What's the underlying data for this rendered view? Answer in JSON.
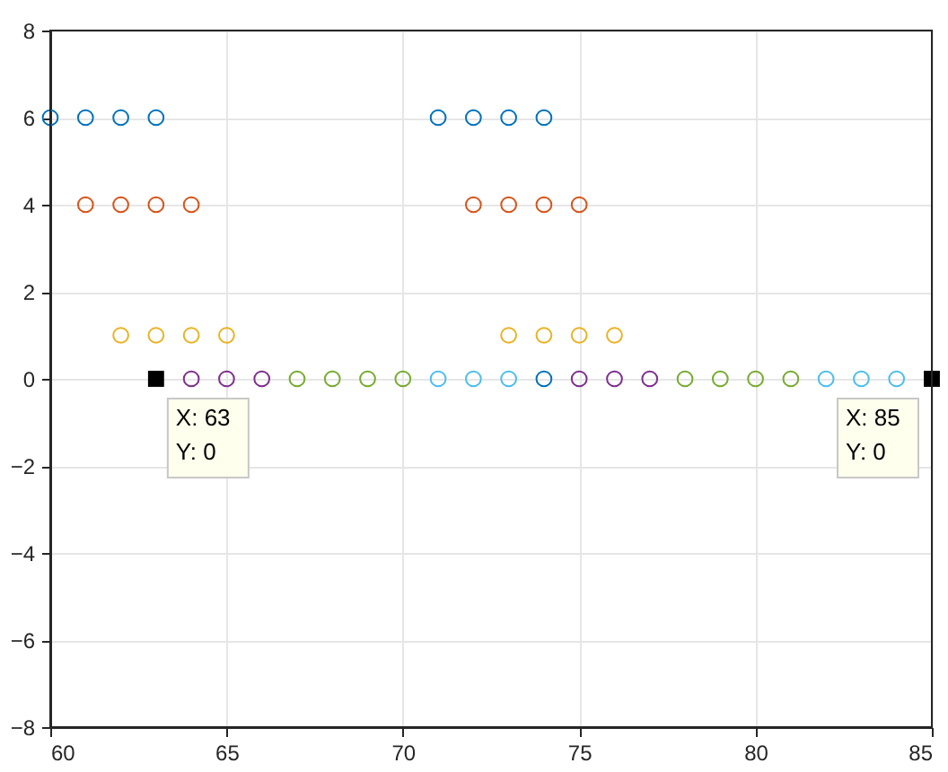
{
  "chart_data": {
    "type": "scatter",
    "marker": "circle",
    "grid": true,
    "xlim": [
      60,
      85
    ],
    "xticks": [
      60,
      65,
      70,
      75,
      80,
      85
    ],
    "ylim": [
      -8,
      8
    ],
    "yticks": [
      -8,
      -6,
      -4,
      -2,
      0,
      2,
      4,
      6,
      8
    ],
    "series": [
      {
        "color": "#0072bd",
        "x": [
          60,
          61,
          62,
          63,
          71,
          72,
          73,
          74,
          74
        ],
        "values": [
          6,
          6,
          6,
          6,
          6,
          6,
          6,
          6,
          0
        ]
      },
      {
        "color": "#d95319",
        "x": [
          61,
          62,
          63,
          64,
          72,
          73,
          74,
          75
        ],
        "values": [
          4,
          4,
          4,
          4,
          4,
          4,
          4,
          4
        ]
      },
      {
        "color": "#edb120",
        "x": [
          62,
          63,
          64,
          65,
          73,
          74,
          75,
          76
        ],
        "values": [
          1,
          1,
          1,
          1,
          1,
          1,
          1,
          1
        ]
      },
      {
        "color": "#7e2f8e",
        "x": [
          64,
          65,
          66,
          75,
          76,
          77
        ],
        "values": [
          0,
          0,
          0,
          0,
          0,
          0
        ]
      },
      {
        "color": "#77ac30",
        "x": [
          67,
          68,
          69,
          70,
          78,
          79,
          80,
          81
        ],
        "values": [
          0,
          0,
          0,
          0,
          0,
          0,
          0,
          0
        ]
      },
      {
        "color": "#4dbeee",
        "x": [
          71,
          72,
          73,
          82,
          83,
          84
        ],
        "values": [
          0,
          0,
          0,
          0,
          0,
          0
        ]
      },
      {
        "color": "#000000",
        "marker": "square",
        "x": [
          63,
          85
        ],
        "values": [
          0,
          0
        ]
      }
    ],
    "annotations": [
      {
        "text": "X: 63\nY: 0",
        "x": 63,
        "y": 0
      },
      {
        "text": "X: 85\nY: 0",
        "x": 85,
        "y": 0
      }
    ]
  }
}
